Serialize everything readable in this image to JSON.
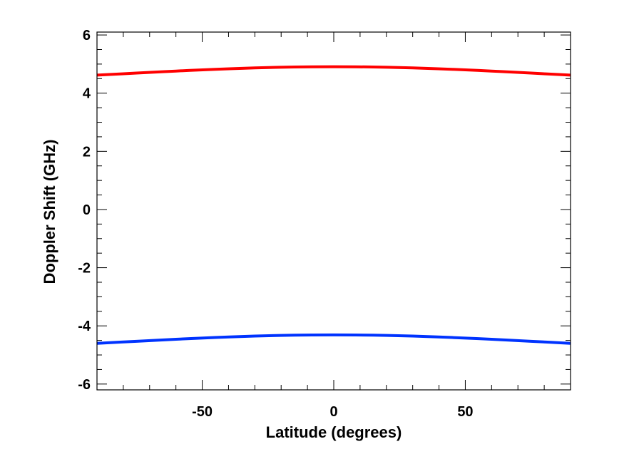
{
  "chart_data": {
    "type": "line",
    "title": "",
    "xlabel": "Latitude (degrees)",
    "ylabel": "Doppler Shift (GHz)",
    "xlim": [
      -90,
      90
    ],
    "ylim": [
      -6.2,
      6.1
    ],
    "x_ticks": [
      -50,
      0,
      50
    ],
    "x_tick_labels": [
      "-50",
      "0",
      "50"
    ],
    "x_minor_step": 10,
    "y_ticks": [
      -6,
      -4,
      -2,
      0,
      2,
      4,
      6
    ],
    "y_tick_labels": [
      "-6",
      "-4",
      "-2",
      "0",
      "2",
      "4",
      "6"
    ],
    "y_minor_step": 0.5,
    "grid": false,
    "legend": "none",
    "series": [
      {
        "color": "#ff0000",
        "x": [
          -90,
          -75,
          -60,
          -45,
          -30,
          -15,
          0,
          15,
          30,
          45,
          60,
          75,
          90
        ],
        "values": [
          4.62,
          4.69,
          4.76,
          4.82,
          4.87,
          4.9,
          4.91,
          4.9,
          4.87,
          4.82,
          4.76,
          4.69,
          4.62
        ]
      },
      {
        "color": "#0033ff",
        "x": [
          -90,
          -75,
          -60,
          -45,
          -30,
          -15,
          0,
          15,
          30,
          45,
          60,
          75,
          90
        ],
        "values": [
          -4.6,
          -4.53,
          -4.46,
          -4.4,
          -4.35,
          -4.32,
          -4.31,
          -4.32,
          -4.35,
          -4.4,
          -4.46,
          -4.53,
          -4.6
        ]
      }
    ]
  }
}
